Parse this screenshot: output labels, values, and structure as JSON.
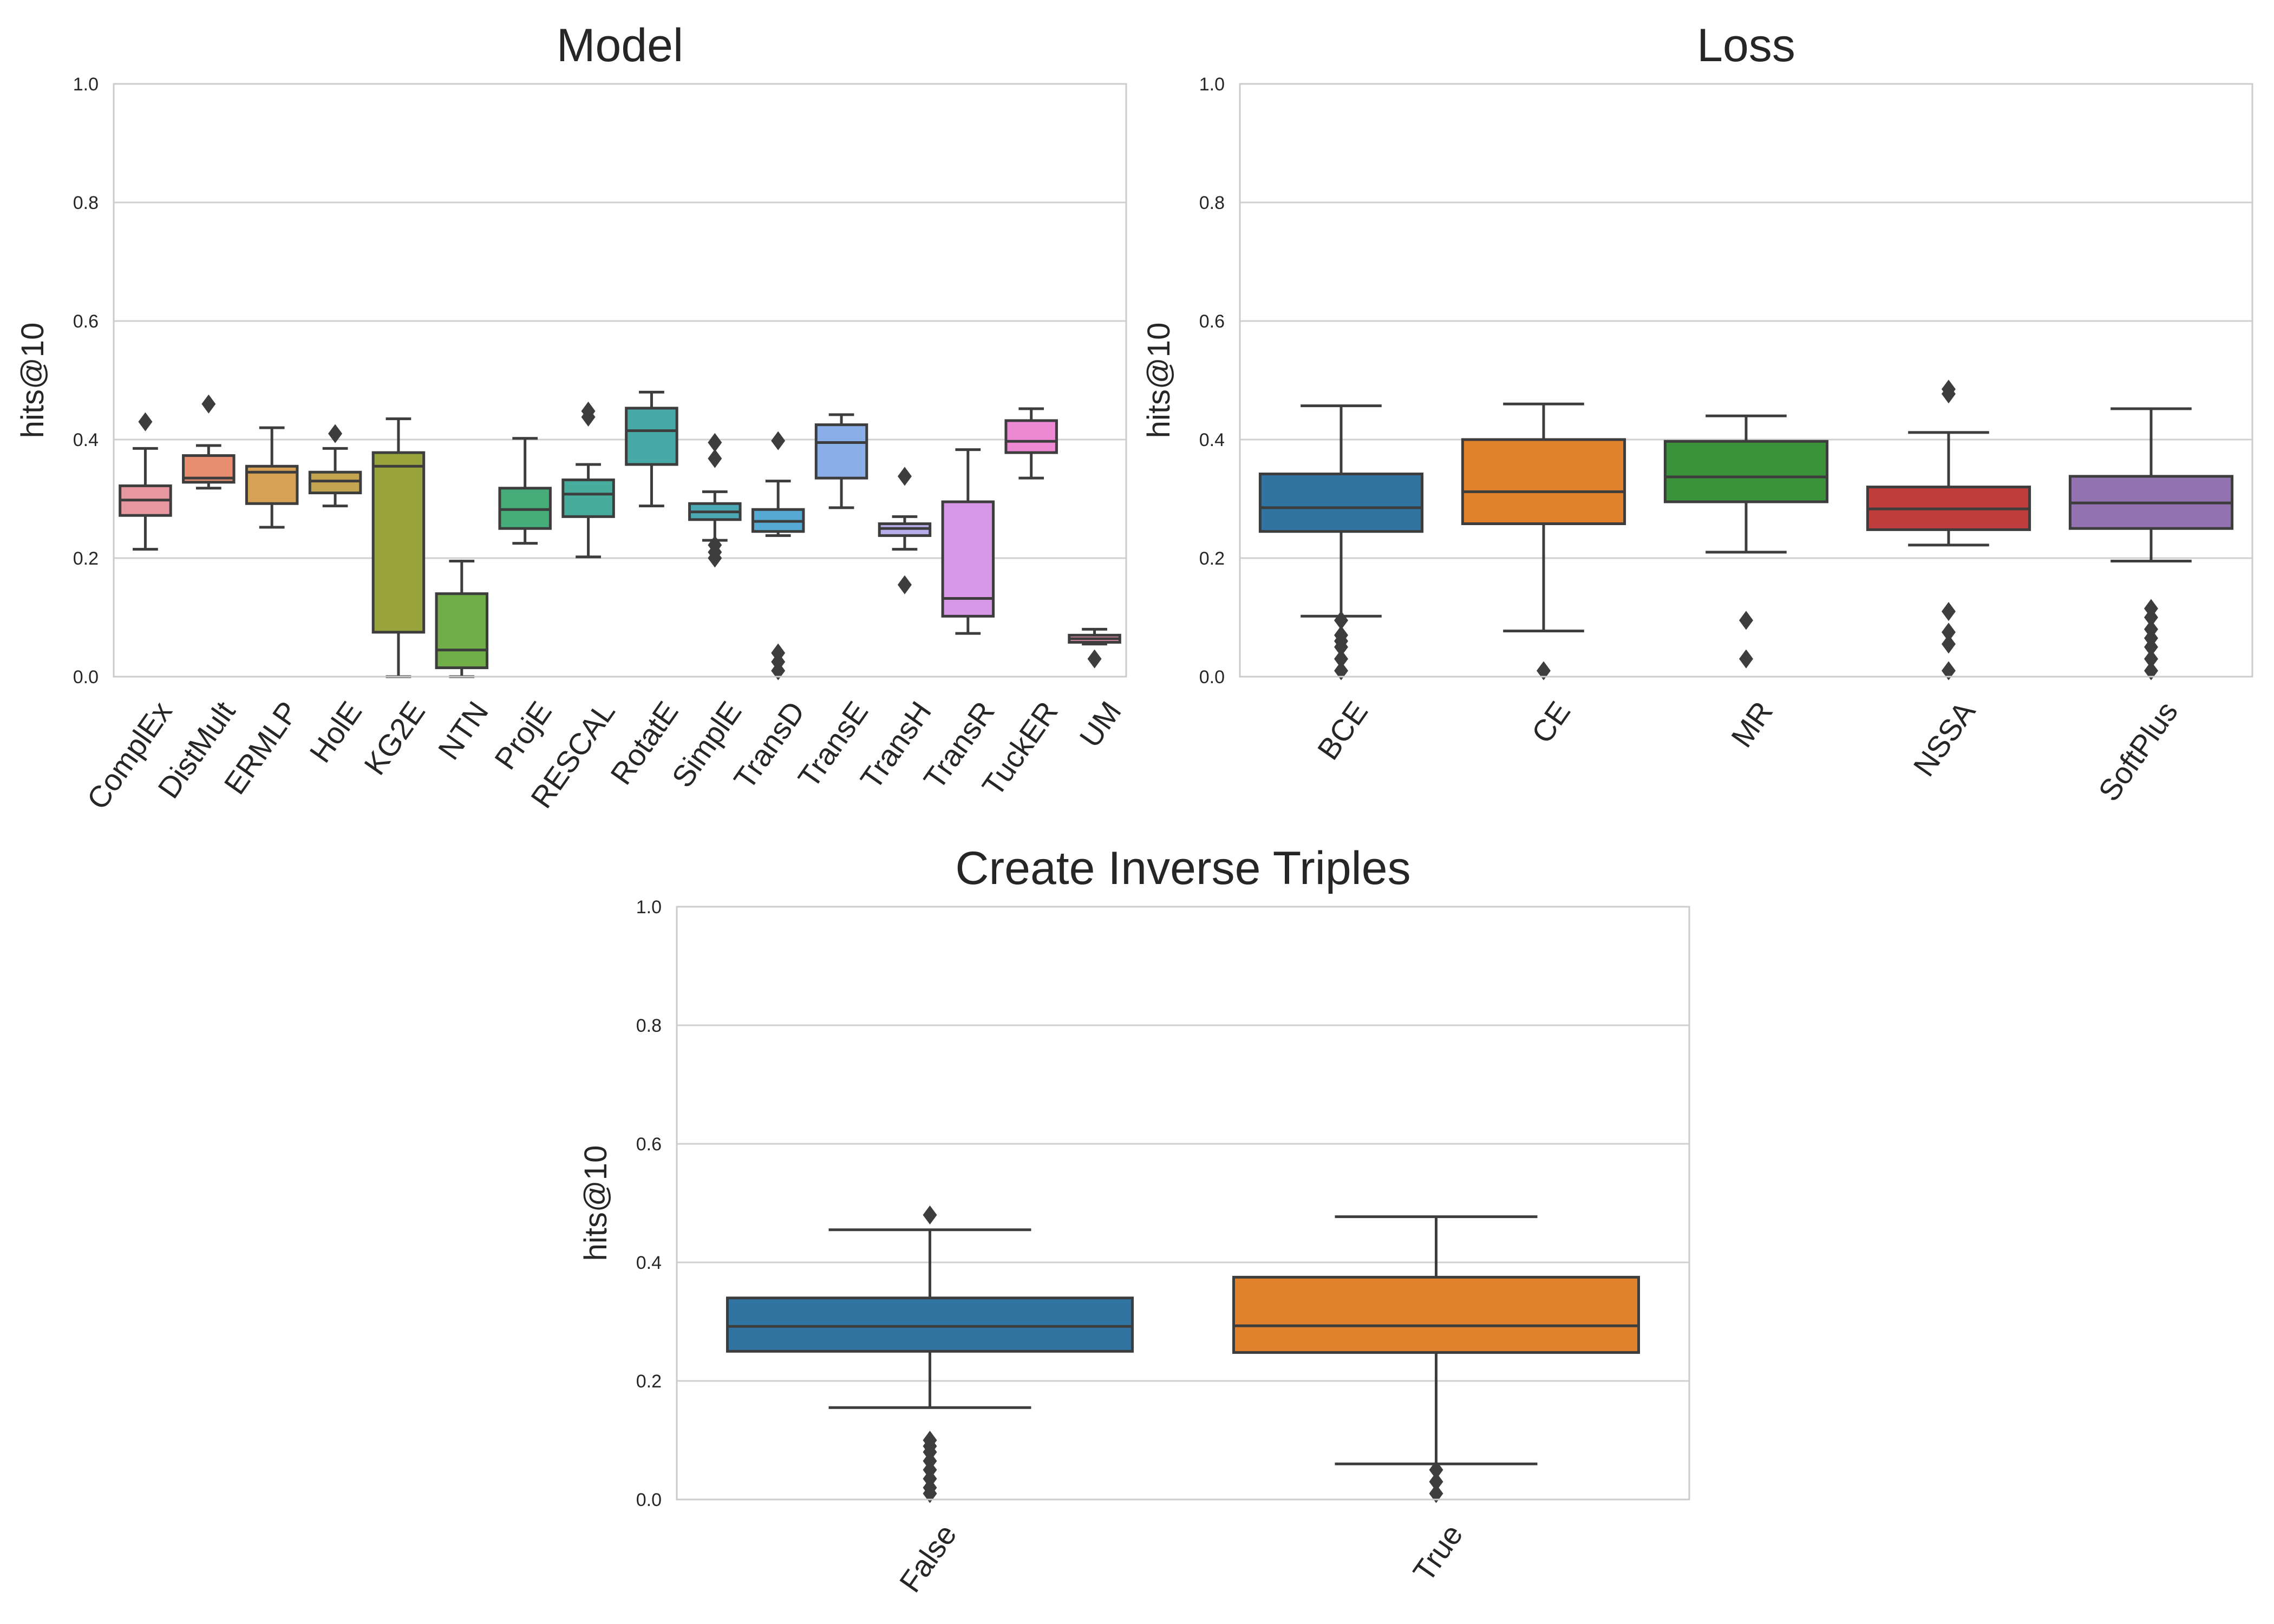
{
  "chart_data": [
    {
      "type": "box",
      "title": "Model",
      "xlabel": "",
      "ylabel": "hits@10",
      "ylim": [
        0,
        1.0
      ],
      "yticks": [
        "0.0",
        "0.2",
        "0.4",
        "0.6",
        "0.8",
        "1.0"
      ],
      "grid": "horizontal",
      "categories": [
        "ComplEx",
        "DistMult",
        "ERMLP",
        "HolE",
        "KG2E",
        "NTN",
        "ProjE",
        "RESCAL",
        "RotatE",
        "SimplE",
        "TransD",
        "TransE",
        "TransH",
        "TransR",
        "TuckER",
        "UM"
      ],
      "colors": [
        "#e8969f",
        "#e88e71",
        "#d6a155",
        "#c3a451",
        "#99a33c",
        "#72ae48",
        "#44ad7a",
        "#47ac9b",
        "#48aaa7",
        "#4ba9b4",
        "#54aad2",
        "#8aaee8",
        "#b7aee9",
        "#d898e8",
        "#ec89d2",
        "#e893b4"
      ],
      "boxes": [
        {
          "whislo": 0.215,
          "q1": 0.272,
          "med": 0.298,
          "q3": 0.322,
          "whishi": 0.385,
          "fliers": [
            0.43
          ]
        },
        {
          "whislo": 0.318,
          "q1": 0.328,
          "med": 0.335,
          "q3": 0.373,
          "whishi": 0.39,
          "fliers": [
            0.46
          ]
        },
        {
          "whislo": 0.252,
          "q1": 0.292,
          "med": 0.345,
          "q3": 0.355,
          "whishi": 0.42,
          "fliers": []
        },
        {
          "whislo": 0.288,
          "q1": 0.31,
          "med": 0.33,
          "q3": 0.345,
          "whishi": 0.385,
          "fliers": [
            0.41
          ]
        },
        {
          "whislo": 0.0,
          "q1": 0.075,
          "med": 0.355,
          "q3": 0.378,
          "whishi": 0.435,
          "fliers": []
        },
        {
          "whislo": 0.0,
          "q1": 0.015,
          "med": 0.045,
          "q3": 0.14,
          "whishi": 0.195,
          "fliers": []
        },
        {
          "whislo": 0.225,
          "q1": 0.25,
          "med": 0.282,
          "q3": 0.318,
          "whishi": 0.402,
          "fliers": []
        },
        {
          "whislo": 0.202,
          "q1": 0.27,
          "med": 0.308,
          "q3": 0.332,
          "whishi": 0.358,
          "fliers": [
            0.438,
            0.448
          ]
        },
        {
          "whislo": 0.288,
          "q1": 0.358,
          "med": 0.415,
          "q3": 0.453,
          "whishi": 0.48,
          "fliers": []
        },
        {
          "whislo": 0.23,
          "q1": 0.265,
          "med": 0.278,
          "q3": 0.292,
          "whishi": 0.312,
          "fliers": [
            0.2,
            0.21,
            0.222,
            0.368,
            0.395
          ]
        },
        {
          "whislo": 0.238,
          "q1": 0.245,
          "med": 0.262,
          "q3": 0.282,
          "whishi": 0.33,
          "fliers": [
            0.01,
            0.025,
            0.04,
            0.398
          ]
        },
        {
          "whislo": 0.285,
          "q1": 0.335,
          "med": 0.395,
          "q3": 0.425,
          "whishi": 0.442,
          "fliers": []
        },
        {
          "whislo": 0.215,
          "q1": 0.238,
          "med": 0.25,
          "q3": 0.258,
          "whishi": 0.27,
          "fliers": [
            0.155,
            0.338
          ]
        },
        {
          "whislo": 0.073,
          "q1": 0.102,
          "med": 0.132,
          "q3": 0.295,
          "whishi": 0.383,
          "fliers": []
        },
        {
          "whislo": 0.335,
          "q1": 0.378,
          "med": 0.397,
          "q3": 0.432,
          "whishi": 0.452,
          "fliers": []
        },
        {
          "whislo": 0.055,
          "q1": 0.058,
          "med": 0.064,
          "q3": 0.07,
          "whishi": 0.08,
          "fliers": [
            0.03
          ]
        }
      ]
    },
    {
      "type": "box",
      "title": "Loss",
      "xlabel": "",
      "ylabel": "hits@10",
      "ylim": [
        0,
        1.0
      ],
      "yticks": [
        "0.0",
        "0.2",
        "0.4",
        "0.6",
        "0.8",
        "1.0"
      ],
      "grid": "horizontal",
      "categories": [
        "BCE",
        "CE",
        "MR",
        "NSSA",
        "SoftPlus"
      ],
      "colors": [
        "#3274a1",
        "#e1812c",
        "#3a923a",
        "#c03d3e",
        "#9372b2"
      ],
      "boxes": [
        {
          "whislo": 0.102,
          "q1": 0.245,
          "med": 0.285,
          "q3": 0.342,
          "whishi": 0.457,
          "fliers": [
            0.01,
            0.03,
            0.05,
            0.06,
            0.07,
            0.095
          ]
        },
        {
          "whislo": 0.077,
          "q1": 0.258,
          "med": 0.312,
          "q3": 0.4,
          "whishi": 0.46,
          "fliers": [
            0.01
          ]
        },
        {
          "whislo": 0.21,
          "q1": 0.295,
          "med": 0.337,
          "q3": 0.397,
          "whishi": 0.44,
          "fliers": [
            0.03,
            0.095
          ]
        },
        {
          "whislo": 0.222,
          "q1": 0.248,
          "med": 0.283,
          "q3": 0.32,
          "whishi": 0.412,
          "fliers": [
            0.01,
            0.055,
            0.075,
            0.11,
            0.477,
            0.485
          ]
        },
        {
          "whislo": 0.195,
          "q1": 0.25,
          "med": 0.293,
          "q3": 0.338,
          "whishi": 0.452,
          "fliers": [
            0.01,
            0.03,
            0.05,
            0.065,
            0.08,
            0.1,
            0.115
          ]
        }
      ]
    },
    {
      "type": "box",
      "title": "Create Inverse Triples",
      "xlabel": "",
      "ylabel": "hits@10",
      "ylim": [
        0,
        1.0
      ],
      "yticks": [
        "0.0",
        "0.2",
        "0.4",
        "0.6",
        "0.8",
        "1.0"
      ],
      "grid": "horizontal",
      "categories": [
        "False",
        "True"
      ],
      "colors": [
        "#3274a1",
        "#e1812c"
      ],
      "boxes": [
        {
          "whislo": 0.155,
          "q1": 0.25,
          "med": 0.292,
          "q3": 0.34,
          "whishi": 0.455,
          "fliers": [
            0.01,
            0.02,
            0.035,
            0.05,
            0.065,
            0.08,
            0.09,
            0.1,
            0.48
          ]
        },
        {
          "whislo": 0.06,
          "q1": 0.248,
          "med": 0.293,
          "q3": 0.375,
          "whishi": 0.477,
          "fliers": [
            0.01,
            0.03,
            0.05
          ]
        }
      ]
    }
  ]
}
